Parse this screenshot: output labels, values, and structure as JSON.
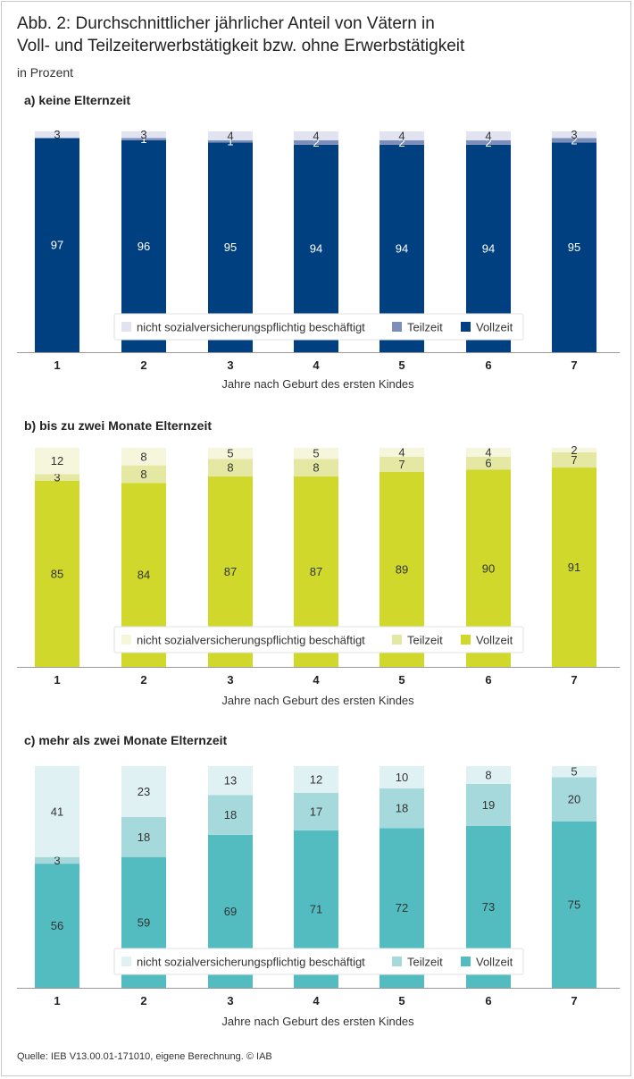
{
  "title_line1": "Abb. 2: Durchschnittlicher jährlicher Anteil von Vätern in",
  "title_line2": "Voll- und Teilzeiterwerbstätigkeit bzw. ohne Erwerbstätigkeit",
  "unit": "in Prozent",
  "source": "Quelle: IEB V13.00.01-171010, eigene Berechnung. © IAB",
  "chart_data": [
    {
      "type": "bar",
      "stacked": true,
      "title": "a) keine Elternzeit",
      "xlabel": "Jahre nach Geburt des ersten Kindes",
      "ylabel": "",
      "ylim": [
        0,
        100
      ],
      "categories": [
        "1",
        "2",
        "3",
        "4",
        "5",
        "6",
        "7"
      ],
      "series": [
        {
          "name": "Vollzeit",
          "color": "#003f80",
          "label_color": "#ffffff",
          "values": [
            97,
            96,
            95,
            94,
            94,
            94,
            95
          ]
        },
        {
          "name": "Teilzeit",
          "color": "#7b8fba",
          "label_color": "#ffffff",
          "values": [
            0,
            1,
            1,
            2,
            2,
            2,
            2
          ]
        },
        {
          "name": "nicht sozialversicherungspflichtig beschäftigt",
          "color": "#e1e3f0",
          "label_color": "#333333",
          "values": [
            3,
            3,
            4,
            4,
            4,
            4,
            3
          ]
        }
      ],
      "legend": [
        "nicht sozialversicherungspflichtig beschäftigt",
        "Teilzeit",
        "Vollzeit"
      ]
    },
    {
      "type": "bar",
      "stacked": true,
      "title": "b) bis zu zwei Monate Elternzeit",
      "xlabel": "Jahre nach Geburt des ersten Kindes",
      "ylabel": "",
      "ylim": [
        0,
        100
      ],
      "categories": [
        "1",
        "2",
        "3",
        "4",
        "5",
        "6",
        "7"
      ],
      "series": [
        {
          "name": "Vollzeit",
          "color": "#cfd82b",
          "label_color": "#333333",
          "values": [
            85,
            84,
            87,
            87,
            89,
            90,
            91
          ]
        },
        {
          "name": "Teilzeit",
          "color": "#e4e8a2",
          "label_color": "#333333",
          "values": [
            3,
            8,
            8,
            8,
            7,
            6,
            7
          ]
        },
        {
          "name": "nicht sozialversicherungspflichtig beschäftigt",
          "color": "#f5f6dc",
          "label_color": "#333333",
          "values": [
            12,
            8,
            5,
            5,
            4,
            4,
            2
          ]
        }
      ],
      "legend": [
        "nicht sozialversicherungspflichtig beschäftigt",
        "Teilzeit",
        "Vollzeit"
      ]
    },
    {
      "type": "bar",
      "stacked": true,
      "title": "c) mehr als zwei Monate Elternzeit",
      "xlabel": "Jahre nach Geburt des ersten Kindes",
      "ylabel": "",
      "ylim": [
        0,
        100
      ],
      "categories": [
        "1",
        "2",
        "3",
        "4",
        "5",
        "6",
        "7"
      ],
      "series": [
        {
          "name": "Vollzeit",
          "color": "#52bcc1",
          "label_color": "#333333",
          "values": [
            56,
            59,
            69,
            71,
            72,
            73,
            75
          ]
        },
        {
          "name": "Teilzeit",
          "color": "#a5d9dc",
          "label_color": "#333333",
          "values": [
            3,
            18,
            18,
            17,
            18,
            19,
            20
          ]
        },
        {
          "name": "nicht sozialversicherungspflichtig beschäftigt",
          "color": "#dff1f3",
          "label_color": "#333333",
          "values": [
            41,
            23,
            13,
            12,
            10,
            8,
            5
          ]
        }
      ],
      "legend": [
        "nicht sozialversicherungspflichtig beschäftigt",
        "Teilzeit",
        "Vollzeit"
      ]
    }
  ]
}
